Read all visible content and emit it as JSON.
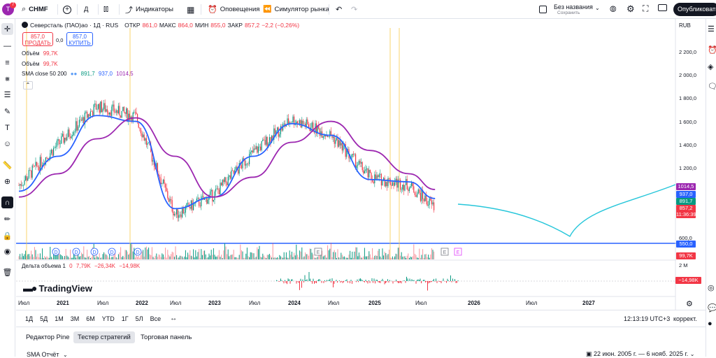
{
  "header": {
    "notifications_count": "7",
    "symbol": "CHMF",
    "interval": "Д",
    "indicators_label": "Индикаторы",
    "alerts_label": "Оповещения",
    "replay_label": "Симулятор рынка",
    "layout_name": "Без названия",
    "layout_status": "Сохранить",
    "publish_label": "Опубликовать"
  },
  "chart_header": {
    "title": "Северсталь (ПАО)ао · 1Д · RUS",
    "open_label": "ОТКР",
    "open_value": "861,0",
    "high_label": "МАКС",
    "high_value": "864,0",
    "low_label": "МИН",
    "low_value": "855,0",
    "close_label": "ЗАКР",
    "close_value": "857,2",
    "change": "−2,2 (−0,26%)",
    "currency": "RUB"
  },
  "trade": {
    "sell_price": "857,0",
    "sell_label": "ПРОДАТЬ",
    "spread": "0,0",
    "buy_price": "857,0",
    "buy_label": "КУПИТЬ"
  },
  "legend": {
    "volume1_label": "Объём",
    "volume1_value": "99,7K",
    "volume2_label": "Объём",
    "volume2_value": "99,7K",
    "sma_label": "SMA close 50 200",
    "sma_v1": "891,7",
    "sma_v2": "937,0",
    "sma_v3": "1014,5",
    "delta_label": "Дельта объема 1",
    "delta_v1": "0",
    "delta_v2": "7,79K",
    "delta_v3": "−26,34K",
    "delta_v4": "−14,98K"
  },
  "price_axis": {
    "ticks": [
      "2 200,0",
      "2 000,0",
      "1 800,0",
      "1 600,0",
      "1 400,0",
      "1 200,0",
      "600,0"
    ],
    "tag_sma200": "1014,5",
    "tag_sma50": "937,0",
    "tag_sma_g": "891,7",
    "tag_price": "857,2",
    "tag_timer": "11:36:39",
    "tag_line": "550,0",
    "tag_volume": "99,7K",
    "delta_tick": "2 M",
    "tag_delta": "−14,98K"
  },
  "time_axis": {
    "ticks": [
      "Июл",
      "2021",
      "Июл",
      "2022",
      "Июл",
      "2023",
      "Июл",
      "2024",
      "Июл",
      "2025",
      "Июл",
      "2026",
      "Июл",
      "2027"
    ]
  },
  "watermark": "TradingView",
  "bottom_bar": {
    "intervals": [
      "1Д",
      "5Д",
      "1М",
      "3М",
      "6М",
      "YTD",
      "1Г",
      "5Л",
      "Все"
    ],
    "clock": "12:13:19 UTC+3",
    "adjust": "коррект."
  },
  "panels": {
    "tabs": [
      "Редактор Pine",
      "Тестер стратегий",
      "Торговая панель"
    ],
    "strategy_name": "SMA Отчёт",
    "date_range": "22 июн. 2005 г. — 6 нояб. 2025 г."
  },
  "chart_data": {
    "type": "candlestick",
    "symbol": "Северсталь (ПАО)ао",
    "currency": "RUB",
    "ylim": [
      550,
      2300
    ],
    "x": [
      "2020-07",
      "2021-01",
      "2021-07",
      "2022-01",
      "2022-07",
      "2023-01",
      "2023-07",
      "2024-01",
      "2024-07",
      "2025-01",
      "2025-07",
      "2025-11"
    ],
    "price_close": [
      1050,
      1400,
      1730,
      1640,
      800,
      970,
      1330,
      1620,
      1480,
      1120,
      1050,
      857
    ],
    "series": [
      {
        "name": "SMA 50",
        "x": [
          "2020-07",
          "2021-01",
          "2021-07",
          "2022-01",
          "2022-07",
          "2023-01",
          "2023-07",
          "2024-01",
          "2024-07",
          "2025-01",
          "2025-07",
          "2025-11"
        ],
        "values": [
          1000,
          1300,
          1650,
          1600,
          850,
          950,
          1300,
          1580,
          1480,
          1100,
          1080,
          937
        ]
      },
      {
        "name": "SMA 200",
        "x": [
          "2020-07",
          "2021-01",
          "2021-07",
          "2022-01",
          "2022-07",
          "2023-01",
          "2023-07",
          "2024-01",
          "2024-07",
          "2025-01",
          "2025-07",
          "2025-11"
        ],
        "values": [
          950,
          1150,
          1450,
          1630,
          1300,
          950,
          1120,
          1420,
          1600,
          1350,
          1150,
          1014.5
        ]
      }
    ],
    "horizontal_line": 550
  }
}
